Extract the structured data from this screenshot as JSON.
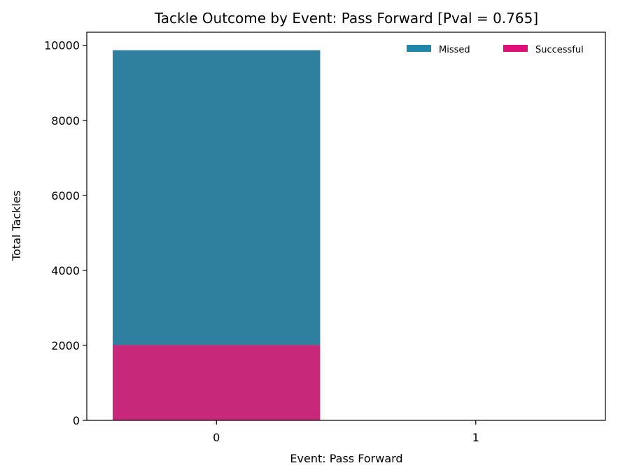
{
  "chart_data": {
    "type": "bar",
    "stacked": true,
    "title": "Tackle Outcome by Event: Pass Forward [Pval = 0.765]",
    "xlabel": "Event: Pass Forward",
    "ylabel": "Total Tackles",
    "categories": [
      "0",
      "1"
    ],
    "series": [
      {
        "name": "Successful",
        "color": "#c7287a",
        "values": [
          2010,
          0
        ]
      },
      {
        "name": "Missed",
        "color": "#2f7f9e",
        "values": [
          7860,
          0
        ]
      }
    ],
    "ylim": [
      0,
      10350
    ],
    "yticks": [
      0,
      2000,
      4000,
      6000,
      8000,
      10000
    ],
    "ytick_labels": [
      "0",
      "2000",
      "4000",
      "6000",
      "8000",
      "10000"
    ],
    "grid": false,
    "legend": {
      "placement": "top-right",
      "entries": [
        {
          "label": "Missed",
          "color": "#1f88a8"
        },
        {
          "label": "Successful",
          "color": "#e0107a"
        }
      ]
    }
  }
}
